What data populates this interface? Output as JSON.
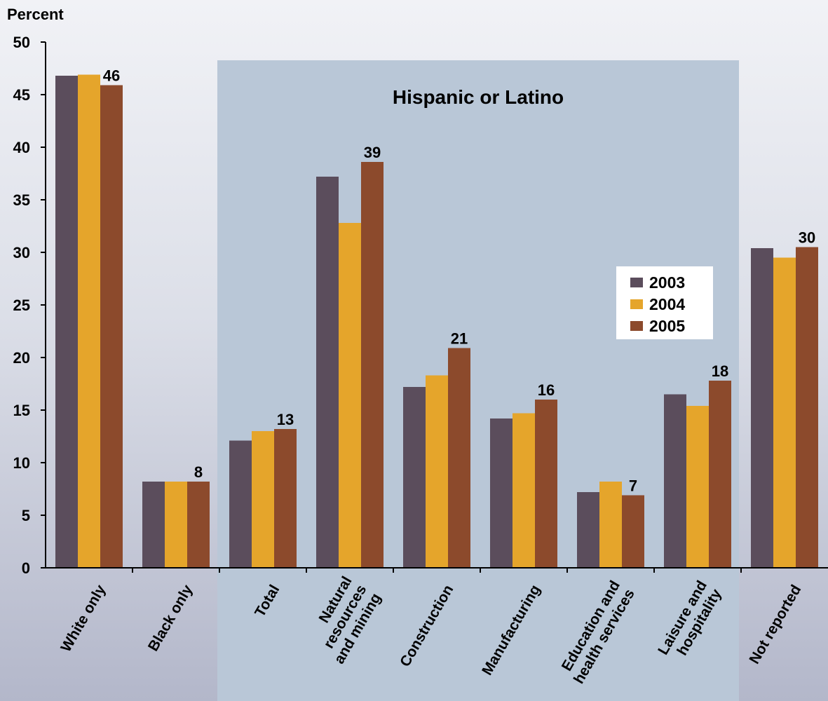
{
  "chart_data": {
    "type": "bar",
    "ylabel": "Percent",
    "ylim": [
      0,
      50
    ],
    "yticks": [
      0,
      5,
      10,
      15,
      20,
      25,
      30,
      35,
      40,
      45,
      50
    ],
    "categories": [
      [
        "White only"
      ],
      [
        "Black only"
      ],
      [
        "Total"
      ],
      [
        "Natural",
        "resources",
        "and mining"
      ],
      [
        "Construction"
      ],
      [
        "Manufacturing"
      ],
      [
        "Education and",
        "health services"
      ],
      [
        "Laisure and",
        "hospitality"
      ],
      [
        "Not reported"
      ]
    ],
    "series": [
      {
        "name": "2003",
        "color": "#5b4d5c",
        "values": [
          46.8,
          8.2,
          12.1,
          37.2,
          17.2,
          14.2,
          7.2,
          16.5,
          30.4
        ]
      },
      {
        "name": "2004",
        "color": "#e5a52b",
        "values": [
          46.9,
          8.2,
          13.0,
          32.8,
          18.3,
          14.7,
          8.2,
          15.4,
          29.5
        ]
      },
      {
        "name": "2005",
        "color": "#8c4a2c",
        "values": [
          45.9,
          8.2,
          13.2,
          38.6,
          20.9,
          16.0,
          6.9,
          17.8,
          30.5
        ]
      }
    ],
    "data_labels": [
      "46",
      "8",
      "13",
      "39",
      "21",
      "16",
      "7",
      "18",
      "30"
    ],
    "group_annotation": {
      "text": "Hispanic or Latino",
      "first_category": 2,
      "last_category": 7,
      "color": "#b9c7d7"
    },
    "legend_position": "right",
    "grid": false
  }
}
